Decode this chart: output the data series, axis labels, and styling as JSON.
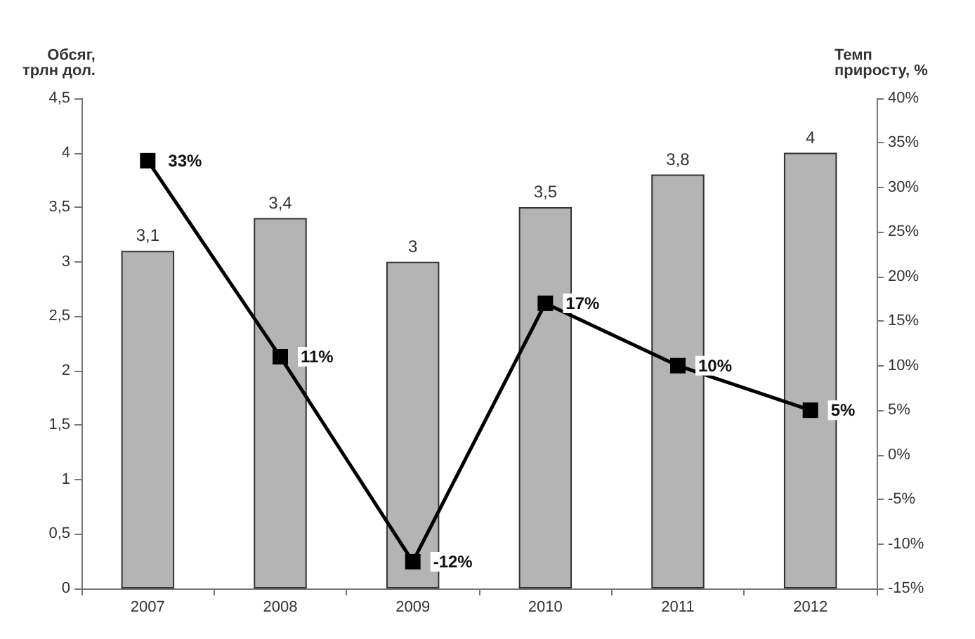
{
  "chart_data": {
    "type": "bar",
    "categories": [
      "2007",
      "2008",
      "2009",
      "2010",
      "2011",
      "2012"
    ],
    "ylabel": "Обсяг,\nтрлн дол.",
    "y2label": "Темп\nприросту, %",
    "series": [
      {
        "color": "#b4b4b4",
        "values": [
          3.1,
          3.4,
          3,
          3.5,
          3.8,
          4
        ],
        "value_labels": [
          "3,1",
          "3,4",
          "3",
          "3,5",
          "3,8",
          "4"
        ]
      },
      {
        "type": "line",
        "axis": "y2",
        "color": "#000000",
        "values": [
          33,
          11,
          -12,
          17,
          10,
          5
        ],
        "value_labels": [
          "33%",
          "11%",
          "-12%",
          "17%",
          "10%",
          "5%"
        ]
      }
    ],
    "ylim": [
      0,
      4.5
    ],
    "yticks": [
      0,
      {
        "value": 0.5,
        "label": "0,5"
      },
      1,
      {
        "value": 1.5,
        "label": "1,5"
      },
      2,
      {
        "value": 2.5,
        "label": "2,5"
      },
      3,
      {
        "value": 3.5,
        "label": "3,5"
      },
      4,
      {
        "value": 4.5,
        "label": "4,5"
      }
    ],
    "y2lim": [
      -15,
      40
    ],
    "y2ticks": [
      {
        "value": -15,
        "label": "-15%"
      },
      {
        "value": -10,
        "label": "-10%"
      },
      {
        "value": -5,
        "label": "-5%"
      },
      {
        "value": 0,
        "label": "0%"
      },
      {
        "value": 5,
        "label": "5%"
      },
      {
        "value": 10,
        "label": "10%"
      },
      {
        "value": 15,
        "label": "15%"
      },
      {
        "value": 20,
        "label": "20%"
      },
      {
        "value": 25,
        "label": "25%"
      },
      {
        "value": 30,
        "label": "30%"
      },
      {
        "value": 35,
        "label": "35%"
      },
      {
        "value": 40,
        "label": "40%"
      }
    ],
    "marker": "square",
    "line_style": "solid",
    "grid": false
  }
}
